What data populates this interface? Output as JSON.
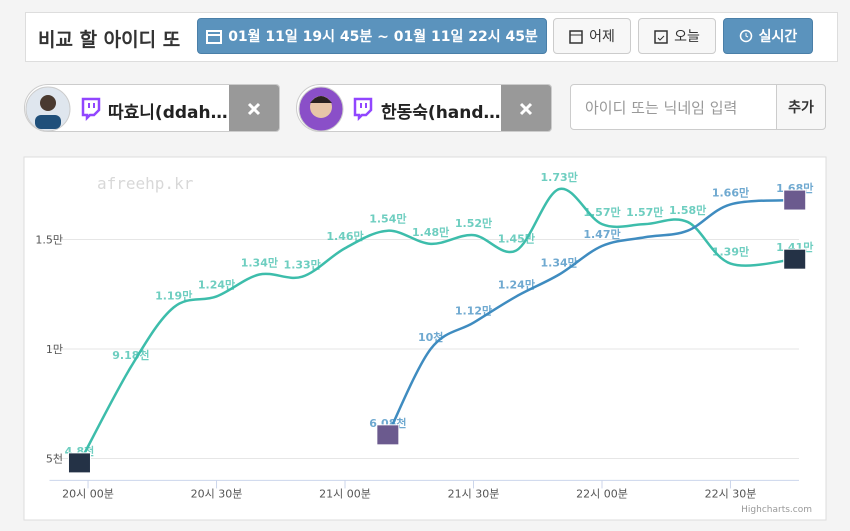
{
  "header": {
    "title": "비교 할 아이디 또",
    "date_range": "01월 11일 19시 45분 ~ 01월 11일 22시 45분",
    "buttons": [
      "어제",
      "오늘",
      "실시간"
    ]
  },
  "search": {
    "placeholder": "아이디 또는 닉네임 입력",
    "button": "추가"
  },
  "chart_data": {
    "type": "line",
    "watermark": "afreehp.kr",
    "credits": "Highcharts.com",
    "xlim": [
      -9,
      166
    ],
    "xticks": [
      {
        "value": 0,
        "label": "20시 00분"
      },
      {
        "value": 30,
        "label": "20시 30분"
      },
      {
        "value": 60,
        "label": "21시 00분"
      },
      {
        "value": 90,
        "label": "21시 30분"
      },
      {
        "value": 120,
        "label": "22시 00분"
      },
      {
        "value": 150,
        "label": "22시 30분"
      }
    ],
    "ylim": [
      4000,
      18400
    ],
    "yticks": [
      {
        "value": 5000,
        "label": "5천"
      },
      {
        "value": 10000,
        "label": "1만"
      },
      {
        "value": 15000,
        "label": "1.5만"
      }
    ],
    "grid": true,
    "series": [
      {
        "name": "따효니(ddah…",
        "color": "#3dbdab",
        "x": [
          -2,
          10,
          20,
          30,
          40,
          50,
          60,
          70,
          80,
          90,
          100,
          110,
          120,
          130,
          140,
          150,
          165
        ],
        "values": [
          4800,
          9180,
          11900,
          12400,
          13400,
          13300,
          14600,
          15400,
          14800,
          15200,
          14500,
          17300,
          15700,
          15700,
          15800,
          13900,
          14100
        ],
        "value_labels": [
          "4.8천",
          "9.18천",
          "1.19만",
          "1.24만",
          "1.34만",
          "1.33만",
          "1.46만",
          "1.54만",
          "1.48만",
          "1.52만",
          "1.45만",
          "1.73만",
          "1.57만",
          "1.57만",
          "1.58만",
          "1.39만",
          "1.41만"
        ]
      },
      {
        "name": "한동숙(hand…",
        "color": "#3f8cc0",
        "x": [
          70,
          80,
          90,
          100,
          110,
          120,
          130,
          140,
          150,
          165
        ],
        "values": [
          6080,
          10000,
          11200,
          12400,
          13400,
          14700,
          15100,
          15400,
          16600,
          16800
        ],
        "value_labels": [
          "6.08천",
          "10천",
          "1.12만",
          "1.24만",
          "1.34만",
          "1.47만",
          null,
          null,
          "1.66만",
          "1.68만"
        ]
      }
    ]
  }
}
